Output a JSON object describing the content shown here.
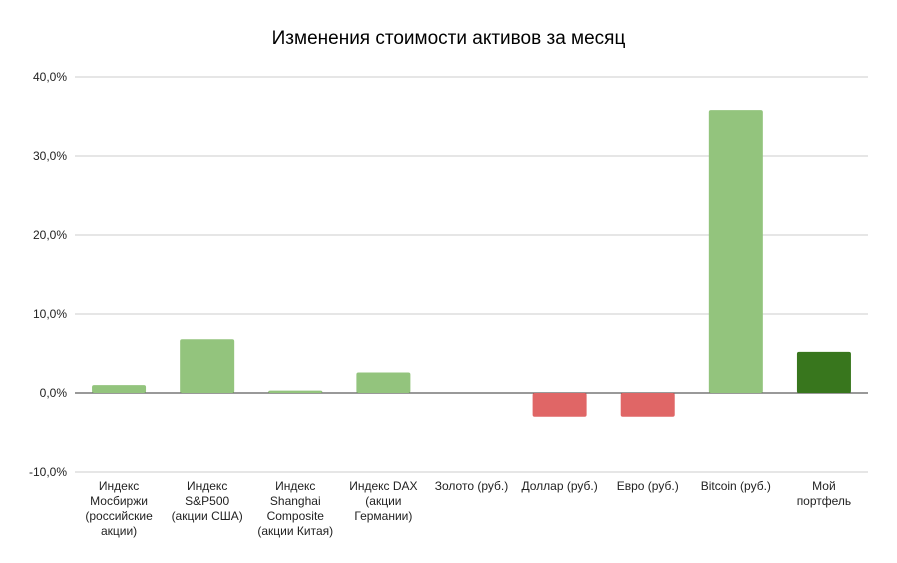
{
  "chart_data": {
    "type": "bar",
    "title": "Изменения стоимости активов за месяц",
    "xlabel": "",
    "ylabel": "",
    "ylim": [
      -10,
      40
    ],
    "yticks": [
      -10,
      0,
      10,
      20,
      30,
      40
    ],
    "ytick_labels": [
      "-10,0%",
      "0,0%",
      "10,0%",
      "20,0%",
      "30,0%",
      "40,0%"
    ],
    "grid": true,
    "legend": "none",
    "categories": [
      "Индекс Мосбиржи (российские акции)",
      "Индекс S&P500 (акции США)",
      "Индекс Shanghai Composite (акции Китая)",
      "Индекс DAX (акции Германии)",
      "Золото (руб.)",
      "Доллар (руб.)",
      "Евро (руб.)",
      "Bitcoin (руб.)",
      "Мой портфель"
    ],
    "category_lines": [
      [
        "Индекс",
        "Мосбиржи",
        "(российские",
        "акции)"
      ],
      [
        "Индекс",
        "S&P500",
        "(акции США)"
      ],
      [
        "Индекс",
        "Shanghai",
        "Composite",
        "(акции Китая)"
      ],
      [
        "Индекс DAX",
        "(акции",
        "Германии)"
      ],
      [
        "Золото (руб.)"
      ],
      [
        "Доллар (руб.)"
      ],
      [
        "Евро (руб.)"
      ],
      [
        "Bitcoin (руб.)"
      ],
      [
        "Мой",
        "портфель"
      ]
    ],
    "values": [
      1.0,
      6.8,
      0.3,
      2.6,
      0.0,
      -3.0,
      -3.0,
      35.8,
      5.2
    ],
    "colors": {
      "positive": "#93c47d",
      "negative": "#e06666",
      "portfolio": "#38761d",
      "gridline": "#cccccc",
      "zero_line": "#333333"
    }
  }
}
